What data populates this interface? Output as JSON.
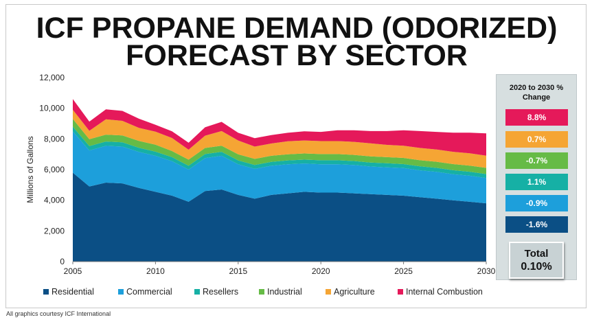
{
  "title_line1": "ICF PROPANE DEMAND (ODORIZED)",
  "title_line2": "FORECAST BY SECTOR",
  "credit": "All graphics courtesy ICF International",
  "side_panel": {
    "heading_line1": "2020 to 2030 %",
    "heading_line2": "Change",
    "changes": [
      {
        "label": "8.8%",
        "color": "#e5195a"
      },
      {
        "label": "0.7%",
        "color": "#f5a534"
      },
      {
        "label": "-0.7%",
        "color": "#66bb46"
      },
      {
        "label": "1.1%",
        "color": "#16b0a5"
      },
      {
        "label": "-0.9%",
        "color": "#1d9fdb"
      },
      {
        "label": "-1.6%",
        "color": "#0b4f85"
      }
    ],
    "total_label": "Total",
    "total_value": "0.10%"
  },
  "chart_data": {
    "type": "area",
    "stacked": true,
    "title": "ICF PROPANE DEMAND (ODORIZED) FORECAST BY SECTOR",
    "xlabel": "",
    "ylabel": "Millions of Gallons",
    "xlim": [
      2005,
      2030
    ],
    "ylim": [
      0,
      12000
    ],
    "x_ticks": [
      "2005",
      "2010",
      "2015",
      "2020",
      "2025",
      "2030"
    ],
    "y_ticks": [
      "0",
      "2,000",
      "4,000",
      "6,000",
      "8,000",
      "10,000",
      "12,000"
    ],
    "grid": false,
    "legend_position": "bottom",
    "x": [
      2005,
      2006,
      2007,
      2008,
      2009,
      2010,
      2011,
      2012,
      2013,
      2014,
      2015,
      2016,
      2017,
      2018,
      2019,
      2020,
      2021,
      2022,
      2023,
      2024,
      2025,
      2026,
      2027,
      2028,
      2029,
      2030
    ],
    "series": [
      {
        "name": "Residential",
        "color": "#0b4f85",
        "values": [
          5800,
          4900,
          5150,
          5100,
          4800,
          4550,
          4300,
          3900,
          4600,
          4700,
          4350,
          4100,
          4350,
          4450,
          4550,
          4500,
          4500,
          4450,
          4400,
          4350,
          4300,
          4200,
          4100,
          4000,
          3900,
          3800
        ]
      },
      {
        "name": "Commercial",
        "color": "#1d9fdb",
        "values": [
          2700,
          2350,
          2400,
          2400,
          2350,
          2350,
          2250,
          2100,
          2150,
          2200,
          2000,
          1950,
          1900,
          1900,
          1850,
          1850,
          1850,
          1850,
          1800,
          1800,
          1800,
          1750,
          1750,
          1700,
          1700,
          1650
        ]
      },
      {
        "name": "Resellers",
        "color": "#16b0a5",
        "values": [
          300,
          280,
          280,
          280,
          270,
          270,
          260,
          250,
          260,
          260,
          250,
          250,
          250,
          250,
          250,
          260,
          260,
          260,
          260,
          260,
          260,
          260,
          260,
          260,
          260,
          260
        ]
      },
      {
        "name": "Industrial",
        "color": "#66bb46",
        "values": [
          500,
          450,
          450,
          450,
          450,
          450,
          400,
          400,
          400,
          400,
          400,
          400,
          400,
          400,
          400,
          400,
          400,
          400,
          400,
          400,
          400,
          400,
          400,
          400,
          400,
          400
        ]
      },
      {
        "name": "Agriculture",
        "color": "#f5a534",
        "values": [
          600,
          550,
          1000,
          950,
          850,
          850,
          850,
          650,
          800,
          950,
          900,
          800,
          800,
          850,
          850,
          850,
          850,
          850,
          850,
          800,
          800,
          800,
          800,
          800,
          800,
          800
        ]
      },
      {
        "name": "Internal Combustion",
        "color": "#e5195a",
        "values": [
          700,
          600,
          650,
          650,
          600,
          450,
          440,
          450,
          550,
          600,
          500,
          550,
          550,
          550,
          600,
          600,
          700,
          750,
          800,
          900,
          1000,
          1100,
          1150,
          1250,
          1350,
          1450
        ]
      }
    ]
  }
}
